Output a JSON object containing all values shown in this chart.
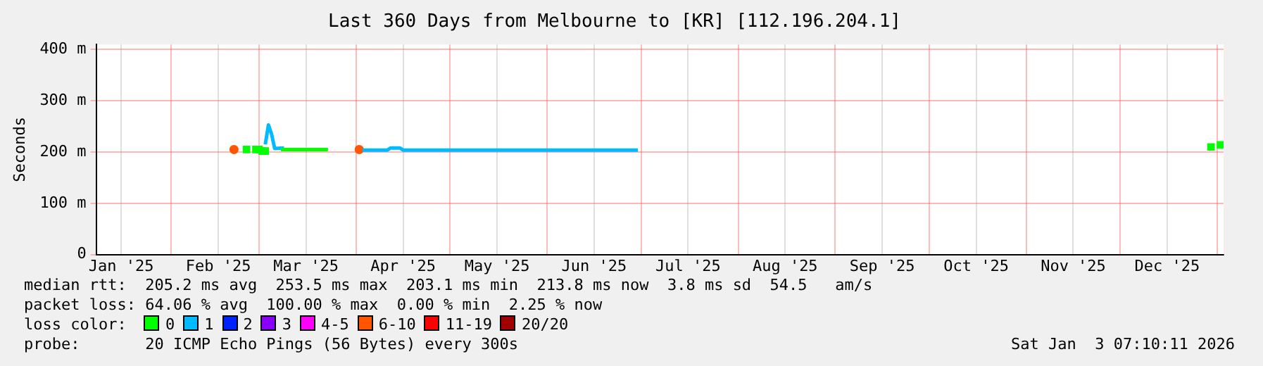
{
  "chart_data": {
    "type": "line",
    "title": "Last 360 Days from Melbourne to [KR] [112.196.204.1]",
    "ylabel": "Seconds",
    "xlim": [
      "2025-01-08",
      "2026-01-03"
    ],
    "xticks": [
      {
        "value": "2025-01-16",
        "label": "Jan '25"
      },
      {
        "value": "2025-02-01",
        "label": null
      },
      {
        "value": "2025-02-16",
        "label": "Feb '25"
      },
      {
        "value": "2025-03-01",
        "label": null
      },
      {
        "value": "2025-03-16",
        "label": "Mar '25"
      },
      {
        "value": "2025-04-01",
        "label": null
      },
      {
        "value": "2025-04-16",
        "label": "Apr '25"
      },
      {
        "value": "2025-05-01",
        "label": null
      },
      {
        "value": "2025-05-16",
        "label": "May '25"
      },
      {
        "value": "2025-06-01",
        "label": null
      },
      {
        "value": "2025-06-16",
        "label": "Jun '25"
      },
      {
        "value": "2025-07-01",
        "label": null
      },
      {
        "value": "2025-07-16",
        "label": "Jul '25"
      },
      {
        "value": "2025-08-01",
        "label": null
      },
      {
        "value": "2025-08-16",
        "label": "Aug '25"
      },
      {
        "value": "2025-09-01",
        "label": null
      },
      {
        "value": "2025-09-16",
        "label": "Sep '25"
      },
      {
        "value": "2025-10-01",
        "label": null
      },
      {
        "value": "2025-10-16",
        "label": "Oct '25"
      },
      {
        "value": "2025-11-01",
        "label": null
      },
      {
        "value": "2025-11-16",
        "label": "Nov '25"
      },
      {
        "value": "2025-12-01",
        "label": null
      },
      {
        "value": "2025-12-16",
        "label": "Dec '25"
      },
      {
        "value": "2026-01-01",
        "label": null
      }
    ],
    "ylim": [
      0,
      410
    ],
    "yticks": [
      0,
      {
        "value": 100,
        "label": "100 m"
      },
      {
        "value": 200,
        "label": "200 m"
      },
      {
        "value": 300,
        "label": "300 m"
      },
      {
        "value": 400,
        "label": "400 m"
      }
    ],
    "grid": true,
    "legend": "bottom",
    "legend_title": "loss color:",
    "series": [
      {
        "name": "0",
        "color": "#00ff00",
        "x": [
          "2025-03-08",
          "2025-03-12",
          "2025-03-16",
          "2025-03-23"
        ],
        "values": [
          205,
          205,
          205,
          205
        ]
      },
      {
        "color": "#00ff00",
        "type": "scatter",
        "marker": "square",
        "x": [
          "2025-02-25",
          "2025-02-28",
          "2025-03-01",
          "2025-03-02",
          "2025-03-03"
        ],
        "values": [
          205,
          205,
          205,
          202,
          202
        ]
      },
      {
        "color": "#00ff00",
        "type": "scatter",
        "marker": "square",
        "x": [
          "2025-12-30",
          "2026-01-02"
        ],
        "values": [
          210,
          214
        ]
      },
      {
        "name": "1",
        "color": "#00bbff",
        "x": [
          "2025-04-03",
          "2025-04-11",
          "2025-04-12",
          "2025-04-15",
          "2025-04-16",
          "2025-05-15",
          "2025-06-15",
          "2025-06-30"
        ],
        "values": [
          204,
          204,
          208,
          208,
          204,
          204,
          204,
          204
        ]
      },
      {
        "color": "#00bbff",
        "x": [
          "2025-03-03",
          "2025-03-04",
          "2025-03-05",
          "2025-03-06",
          "2025-03-09"
        ],
        "values": [
          215,
          253,
          235,
          207,
          208
        ]
      },
      {
        "name": "2",
        "color": "#0022ff"
      },
      {
        "name": "3",
        "color": "#8a00ff"
      },
      {
        "name": "4-5",
        "color": "#ff00ff"
      },
      {
        "name": "6-10",
        "color": "#ff5500",
        "type": "scatter",
        "x": [
          "2025-02-21",
          "2025-04-02"
        ],
        "values": [
          205,
          205
        ]
      },
      {
        "name": "11-19",
        "color": "#ff0000"
      },
      {
        "name": "20/20",
        "color": "#a00000"
      }
    ],
    "annotations": [
      "median rtt:  205.2 ms avg  253.5 ms max  203.1 ms min  213.8 ms now  3.8 ms sd  54.5   am/s",
      "packet loss: 64.06 % avg  100.00 % max  0.00 % min  2.25 % now",
      "probe:       20 ICMP Echo Pings (56 Bytes) every 300s",
      "Sat Jan  3 07:10:11 2026"
    ]
  }
}
